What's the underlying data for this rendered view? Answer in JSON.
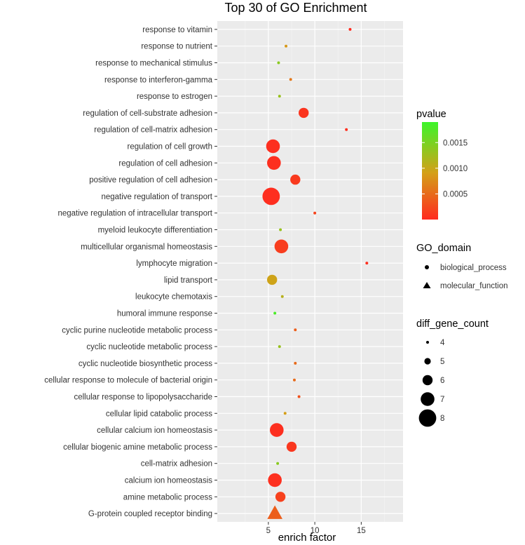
{
  "chart_data": {
    "type": "scatter",
    "title": "Top 30 of GO Enrichment",
    "xlabel": "enrich factor",
    "ylabel": "",
    "xlim": [
      -0.5,
      19.5
    ],
    "xticks": [
      5,
      10,
      15
    ],
    "grid": true,
    "points": [
      {
        "term": "response to vitamin",
        "x": 13.8,
        "pvalue": 1e-05,
        "count": 4,
        "domain": "biological_process"
      },
      {
        "term": "response to nutrient",
        "x": 6.9,
        "pvalue": 0.00085,
        "count": 4,
        "domain": "biological_process"
      },
      {
        "term": "response to mechanical stimulus",
        "x": 6.1,
        "pvalue": 0.0014,
        "count": 4,
        "domain": "biological_process"
      },
      {
        "term": "response to interferon-gamma",
        "x": 7.4,
        "pvalue": 0.0006,
        "count": 4,
        "domain": "biological_process"
      },
      {
        "term": "response to estrogen",
        "x": 6.2,
        "pvalue": 0.0013,
        "count": 4,
        "domain": "biological_process"
      },
      {
        "term": "regulation of cell-substrate adhesion",
        "x": 8.8,
        "pvalue": 8e-05,
        "count": 6,
        "domain": "biological_process"
      },
      {
        "term": "regulation of cell-matrix adhesion",
        "x": 13.4,
        "pvalue": 4e-05,
        "count": 4,
        "domain": "biological_process"
      },
      {
        "term": "regulation of cell growth",
        "x": 5.5,
        "pvalue": 4e-05,
        "count": 7,
        "domain": "biological_process"
      },
      {
        "term": "regulation of cell adhesion",
        "x": 5.6,
        "pvalue": 4e-05,
        "count": 7,
        "domain": "biological_process"
      },
      {
        "term": "positive regulation of cell adhesion",
        "x": 7.9,
        "pvalue": 0.00012,
        "count": 6,
        "domain": "biological_process"
      },
      {
        "term": "negative regulation of transport",
        "x": 5.3,
        "pvalue": 3e-05,
        "count": 8,
        "domain": "biological_process"
      },
      {
        "term": "negative regulation of intracellular transport",
        "x": 10.0,
        "pvalue": 0.0002,
        "count": 4,
        "domain": "biological_process"
      },
      {
        "term": "myeloid leukocyte differentiation",
        "x": 6.3,
        "pvalue": 0.0013,
        "count": 4,
        "domain": "biological_process"
      },
      {
        "term": "multicellular organismal homeostasis",
        "x": 6.4,
        "pvalue": 0.00015,
        "count": 7,
        "domain": "biological_process"
      },
      {
        "term": "lymphocyte migration",
        "x": 15.6,
        "pvalue": 4e-05,
        "count": 4,
        "domain": "biological_process"
      },
      {
        "term": "lipid transport",
        "x": 5.4,
        "pvalue": 0.00095,
        "count": 6,
        "domain": "biological_process"
      },
      {
        "term": "leukocyte chemotaxis",
        "x": 6.5,
        "pvalue": 0.0011,
        "count": 4,
        "domain": "biological_process"
      },
      {
        "term": "humoral immune response",
        "x": 5.7,
        "pvalue": 0.0018,
        "count": 4,
        "domain": "biological_process"
      },
      {
        "term": "cyclic purine nucleotide metabolic process",
        "x": 7.9,
        "pvalue": 0.0004,
        "count": 4,
        "domain": "biological_process"
      },
      {
        "term": "cyclic nucleotide metabolic process",
        "x": 6.2,
        "pvalue": 0.0013,
        "count": 4,
        "domain": "biological_process"
      },
      {
        "term": "cyclic nucleotide biosynthetic process",
        "x": 7.9,
        "pvalue": 0.0005,
        "count": 4,
        "domain": "biological_process"
      },
      {
        "term": "cellular response to molecule of bacterial origin",
        "x": 7.8,
        "pvalue": 0.0005,
        "count": 4,
        "domain": "biological_process"
      },
      {
        "term": "cellular response to lipopolysaccharide",
        "x": 8.3,
        "pvalue": 0.0003,
        "count": 4,
        "domain": "biological_process"
      },
      {
        "term": "cellular lipid catabolic process",
        "x": 6.8,
        "pvalue": 0.0009,
        "count": 4,
        "domain": "biological_process"
      },
      {
        "term": "cellular calcium ion homeostasis",
        "x": 5.9,
        "pvalue": 4e-05,
        "count": 7,
        "domain": "biological_process"
      },
      {
        "term": "cellular biogenic amine metabolic process",
        "x": 7.5,
        "pvalue": 0.0001,
        "count": 6,
        "domain": "biological_process"
      },
      {
        "term": "cell-matrix adhesion",
        "x": 6.0,
        "pvalue": 0.0014,
        "count": 4,
        "domain": "biological_process"
      },
      {
        "term": "calcium ion homeostasis",
        "x": 5.7,
        "pvalue": 5e-05,
        "count": 7,
        "domain": "biological_process"
      },
      {
        "term": "amine metabolic process",
        "x": 6.3,
        "pvalue": 0.00018,
        "count": 6,
        "domain": "biological_process"
      },
      {
        "term": "G-protein coupled receptor binding",
        "x": 5.7,
        "pvalue": 0.0004,
        "count": 7,
        "domain": "molecular_function"
      }
    ],
    "legend_pvalue": {
      "title": "pvalue",
      "range": [
        0,
        0.0019
      ],
      "ticks": [
        0.0005,
        0.001,
        0.0015
      ],
      "tick_labels": [
        "0.0005",
        "0.0010",
        "0.0015"
      ],
      "colors": [
        "#ff2a1f",
        "#d4a017",
        "#3cf52a"
      ]
    },
    "legend_domain": {
      "title": "GO_domain",
      "items": [
        {
          "label": "biological_process",
          "shape": "circle"
        },
        {
          "label": "molecular_function",
          "shape": "triangle"
        }
      ]
    },
    "legend_count": {
      "title": "diff_gene_count",
      "items": [
        {
          "label": "4",
          "count": 4
        },
        {
          "label": "5",
          "count": 5
        },
        {
          "label": "6",
          "count": 6
        },
        {
          "label": "7",
          "count": 7
        },
        {
          "label": "8",
          "count": 8
        }
      ]
    }
  }
}
